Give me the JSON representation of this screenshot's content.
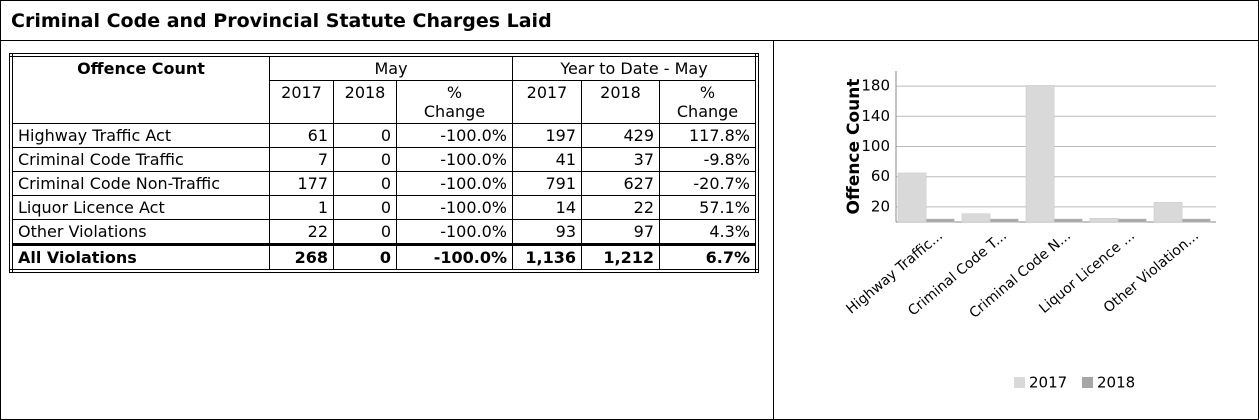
{
  "header": {
    "title": "Criminal Code and Provincial Statute Charges Laid"
  },
  "table": {
    "header_row1": [
      "Offence Count",
      "May",
      "Year to Date - May"
    ],
    "header_row2": [
      "2017",
      "2018",
      "% Change",
      "2017",
      "2018",
      "% Change"
    ],
    "rows": [
      [
        "Highway Traffic Act",
        "61",
        "0",
        "-100.0%",
        "197",
        "429",
        "117.8%"
      ],
      [
        "Criminal Code Traffic",
        "7",
        "0",
        "-100.0%",
        "41",
        "37",
        "-9.8%"
      ],
      [
        "Criminal Code Non-Traffic",
        "177",
        "0",
        "-100.0%",
        "791",
        "627",
        "-20.7%"
      ],
      [
        "Liquor Licence Act",
        "1",
        "0",
        "-100.0%",
        "14",
        "22",
        "57.1%"
      ],
      [
        "Other Violations",
        "22",
        "0",
        "-100.0%",
        "93",
        "97",
        "4.3%"
      ]
    ],
    "total": [
      "All Violations",
      "268",
      "0",
      "-100.0%",
      "1,136",
      "1,212",
      "6.7%"
    ]
  },
  "chart_data": {
    "type": "bar",
    "y_label": "Offence Count",
    "categories": [
      "Highway Traffic...",
      "Criminal Code T...",
      "Criminal Code N...",
      "Liquor Licence ...",
      "Other Violation..."
    ],
    "series": [
      {
        "name": "2017",
        "color": "#d9d9d9",
        "values": [
          61,
          7,
          177,
          1,
          22
        ]
      },
      {
        "name": "2018",
        "color": "#a6a6a6",
        "values": [
          0,
          0,
          0,
          0,
          0
        ]
      }
    ],
    "ylim": [
      0,
      200
    ],
    "yticks": [
      20,
      60,
      100,
      140,
      180
    ],
    "grid": true,
    "legend": "bottom"
  }
}
